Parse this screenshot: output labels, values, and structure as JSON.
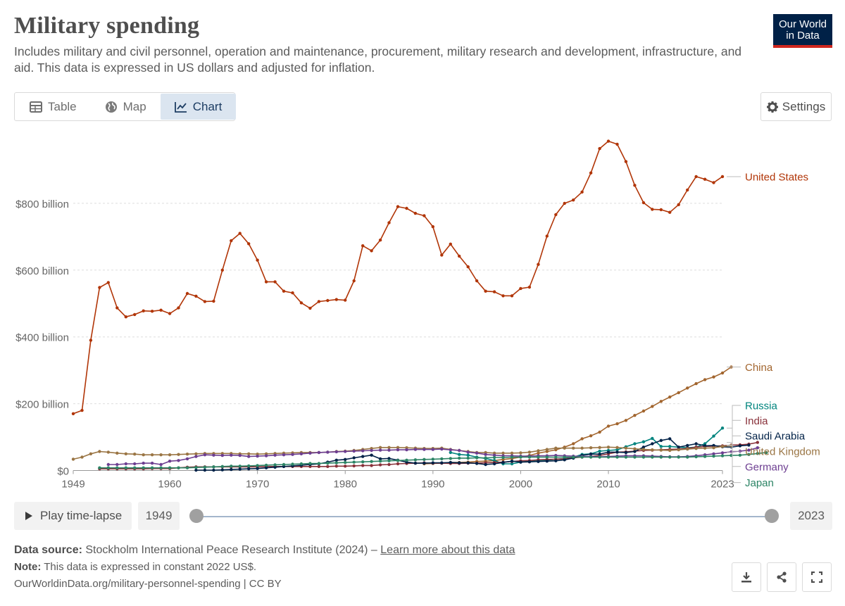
{
  "header": {
    "title": "Military spending",
    "subtitle": "Includes military and civil personnel, operation and maintenance, procurement, military research and development, infrastructure, and aid. This data is expressed in US dollars and adjusted for inflation.",
    "logo_line1": "Our World",
    "logo_line2": "in Data"
  },
  "tabs": [
    {
      "label": "Table",
      "icon": "table-icon"
    },
    {
      "label": "Map",
      "icon": "globe-icon"
    },
    {
      "label": "Chart",
      "icon": "line-chart-icon",
      "active": true
    }
  ],
  "settings_label": "Settings",
  "controls": {
    "play_label": "Play time-lapse",
    "start_year": "1949",
    "end_year": "2023"
  },
  "footer": {
    "source_label": "Data source:",
    "source_text": "Stockholm International Peace Research Institute (2024) –",
    "learn_more": "Learn more about this data",
    "note_label": "Note:",
    "note_text": "This data is expressed in constant 2022 US$.",
    "url": "OurWorldinData.org/military-personnel-spending | CC BY"
  },
  "colors": {
    "United States": "#b13507",
    "China": "#a2652e",
    "Russia": "#00847e",
    "India": "#883039",
    "Saudi Arabia": "#002147",
    "United Kingdom": "#9a7544",
    "Germany": "#6d3e91",
    "Japan": "#2c8465"
  },
  "chart_data": {
    "type": "line",
    "title": "Military spending",
    "x_range": [
      1949,
      2023
    ],
    "ylim": [
      0,
      1000
    ],
    "y_unit": "billion US$ (constant 2022)",
    "y_ticks": [
      {
        "value": 0,
        "label": "$0"
      },
      {
        "value": 200,
        "label": "$200 billion"
      },
      {
        "value": 400,
        "label": "$400 billion"
      },
      {
        "value": 600,
        "label": "$600 billion"
      },
      {
        "value": 800,
        "label": "$800 billion"
      }
    ],
    "x_ticks": [
      {
        "value": 1949,
        "label": "1949"
      },
      {
        "value": 1960,
        "label": "1960"
      },
      {
        "value": 1970,
        "label": "1970"
      },
      {
        "value": 1980,
        "label": "1980"
      },
      {
        "value": 1990,
        "label": "1990"
      },
      {
        "value": 2000,
        "label": "2000"
      },
      {
        "value": 2010,
        "label": "2010"
      },
      {
        "value": 2023,
        "label": "2023"
      }
    ],
    "series": [
      {
        "name": "United States",
        "start": 1949,
        "values": [
          170,
          180,
          390,
          548,
          563,
          487,
          460,
          467,
          478,
          477,
          480,
          470,
          487,
          530,
          522,
          506,
          507,
          600,
          688,
          710,
          679,
          630,
          565,
          565,
          537,
          532,
          502,
          486,
          506,
          509,
          512,
          510,
          568,
          673,
          658,
          690,
          742,
          790,
          785,
          770,
          763,
          730,
          645,
          678,
          642,
          610,
          568,
          537,
          535,
          523,
          523,
          545,
          549,
          617,
          702,
          766,
          800,
          810,
          834,
          891,
          964,
          986,
          977,
          925,
          854,
          802,
          782,
          781,
          773,
          796,
          840,
          880,
          872,
          862,
          880
        ]
      },
      {
        "name": "China",
        "start": 1989,
        "values": [
          20,
          21,
          22,
          24,
          24,
          25,
          27,
          28,
          30,
          33,
          36,
          40,
          45,
          52,
          57,
          62,
          70,
          80,
          95,
          104,
          115,
          133,
          140,
          150,
          165,
          178,
          192,
          207,
          220,
          233,
          247,
          260,
          272,
          280,
          292,
          310
        ]
      },
      {
        "name": "Russia",
        "start": 1992,
        "values": [
          54,
          48,
          46,
          40,
          36,
          30,
          20,
          20,
          25,
          28,
          30,
          31,
          34,
          36,
          40,
          48,
          50,
          58,
          60,
          62,
          71,
          80,
          86,
          96,
          72,
          72,
          70,
          68,
          70,
          80,
          103,
          127
        ]
      },
      {
        "name": "India",
        "start": 1952,
        "values": [
          5,
          5,
          5,
          5,
          5,
          5,
          6,
          6,
          6,
          8,
          10,
          11,
          11,
          11,
          11,
          11,
          11,
          11,
          11,
          12,
          12,
          12,
          12,
          12,
          12,
          12,
          12,
          13,
          13,
          14,
          15,
          15,
          17,
          18,
          20,
          21,
          22,
          23,
          22,
          22,
          21,
          21,
          22,
          22,
          23,
          24,
          25,
          27,
          29,
          30,
          32,
          33,
          34,
          35,
          38,
          40,
          42,
          45,
          50,
          55,
          56,
          58,
          60,
          61,
          62,
          63,
          64,
          66,
          70,
          72,
          73,
          74,
          76,
          77,
          79,
          84
        ]
      },
      {
        "name": "Saudi Arabia",
        "start": 1963,
        "values": [
          1,
          1,
          1,
          2,
          3,
          4,
          5,
          6,
          8,
          10,
          12,
          14,
          16,
          18,
          20,
          25,
          31,
          33,
          38,
          42,
          46,
          35,
          36,
          31,
          25,
          22,
          22,
          23,
          23,
          24,
          23,
          23,
          21,
          18,
          20,
          24,
          28,
          25,
          26,
          27,
          28,
          29,
          32,
          37,
          45,
          49,
          49,
          55,
          55,
          54,
          57,
          70,
          80,
          90,
          95,
          70,
          75,
          80,
          74,
          75,
          71,
          70,
          74,
          76
        ]
      },
      {
        "name": "United Kingdom",
        "start": 1949,
        "values": [
          34,
          40,
          50,
          57,
          55,
          52,
          50,
          49,
          47,
          47,
          47,
          47,
          48,
          49,
          50,
          51,
          51,
          51,
          51,
          50,
          50,
          49,
          50,
          51,
          52,
          53,
          54,
          54,
          54,
          55,
          57,
          58,
          60,
          63,
          66,
          69,
          69,
          69,
          68,
          67,
          66,
          66,
          67,
          63,
          60,
          57,
          54,
          54,
          52,
          52,
          52,
          53,
          55,
          59,
          63,
          67,
          67,
          67,
          67,
          68,
          69,
          70,
          69,
          67,
          65,
          63,
          62,
          61,
          60,
          62,
          64,
          66,
          67,
          68,
          72,
          75
        ]
      },
      {
        "name": "Germany",
        "start": 1953,
        "values": [
          18,
          18,
          20,
          20,
          22,
          22,
          18,
          28,
          30,
          35,
          42,
          47,
          46,
          45,
          46,
          45,
          42,
          43,
          44,
          46,
          47,
          48,
          50,
          52,
          54,
          55,
          56,
          57,
          58,
          59,
          60,
          61,
          61,
          62,
          62,
          63,
          63,
          63,
          64,
          62,
          60,
          55,
          52,
          48,
          46,
          44,
          44,
          43,
          43,
          44,
          44,
          45,
          44,
          43,
          42,
          42,
          41,
          42,
          43,
          44,
          44,
          44,
          43,
          42,
          41,
          41,
          42,
          44,
          47,
          50,
          53,
          56,
          58,
          61,
          68
        ]
      },
      {
        "name": "Japan",
        "start": 1952,
        "values": [
          8,
          8,
          8,
          8,
          8,
          8,
          8,
          8,
          8,
          8,
          8,
          9,
          10,
          11,
          12,
          13,
          13,
          14,
          15,
          16,
          17,
          18,
          19,
          20,
          21,
          21,
          22,
          23,
          24,
          25,
          26,
          27,
          28,
          29,
          30,
          31,
          32,
          33,
          34,
          35,
          36,
          37,
          37,
          38,
          38,
          39,
          39,
          40,
          40,
          40,
          40,
          40,
          40,
          40,
          40,
          40,
          40,
          40,
          40,
          40,
          40,
          40,
          40,
          40,
          40,
          40,
          40,
          40,
          41,
          42,
          43,
          44,
          45,
          46,
          48,
          51,
          54
        ]
      }
    ],
    "legend": [
      {
        "name": "United States",
        "value_at_label": 880
      },
      {
        "name": "China",
        "value_at_label": 310
      },
      {
        "name": "Russia",
        "value_at_label": 195
      },
      {
        "name": "India",
        "value_at_label": 150
      },
      {
        "name": "Saudi Arabia",
        "value_at_label": 104
      },
      {
        "name": "United Kingdom",
        "value_at_label": 58
      },
      {
        "name": "Germany",
        "value_at_label": 12
      },
      {
        "name": "Japan",
        "value_at_label": -36
      }
    ]
  }
}
